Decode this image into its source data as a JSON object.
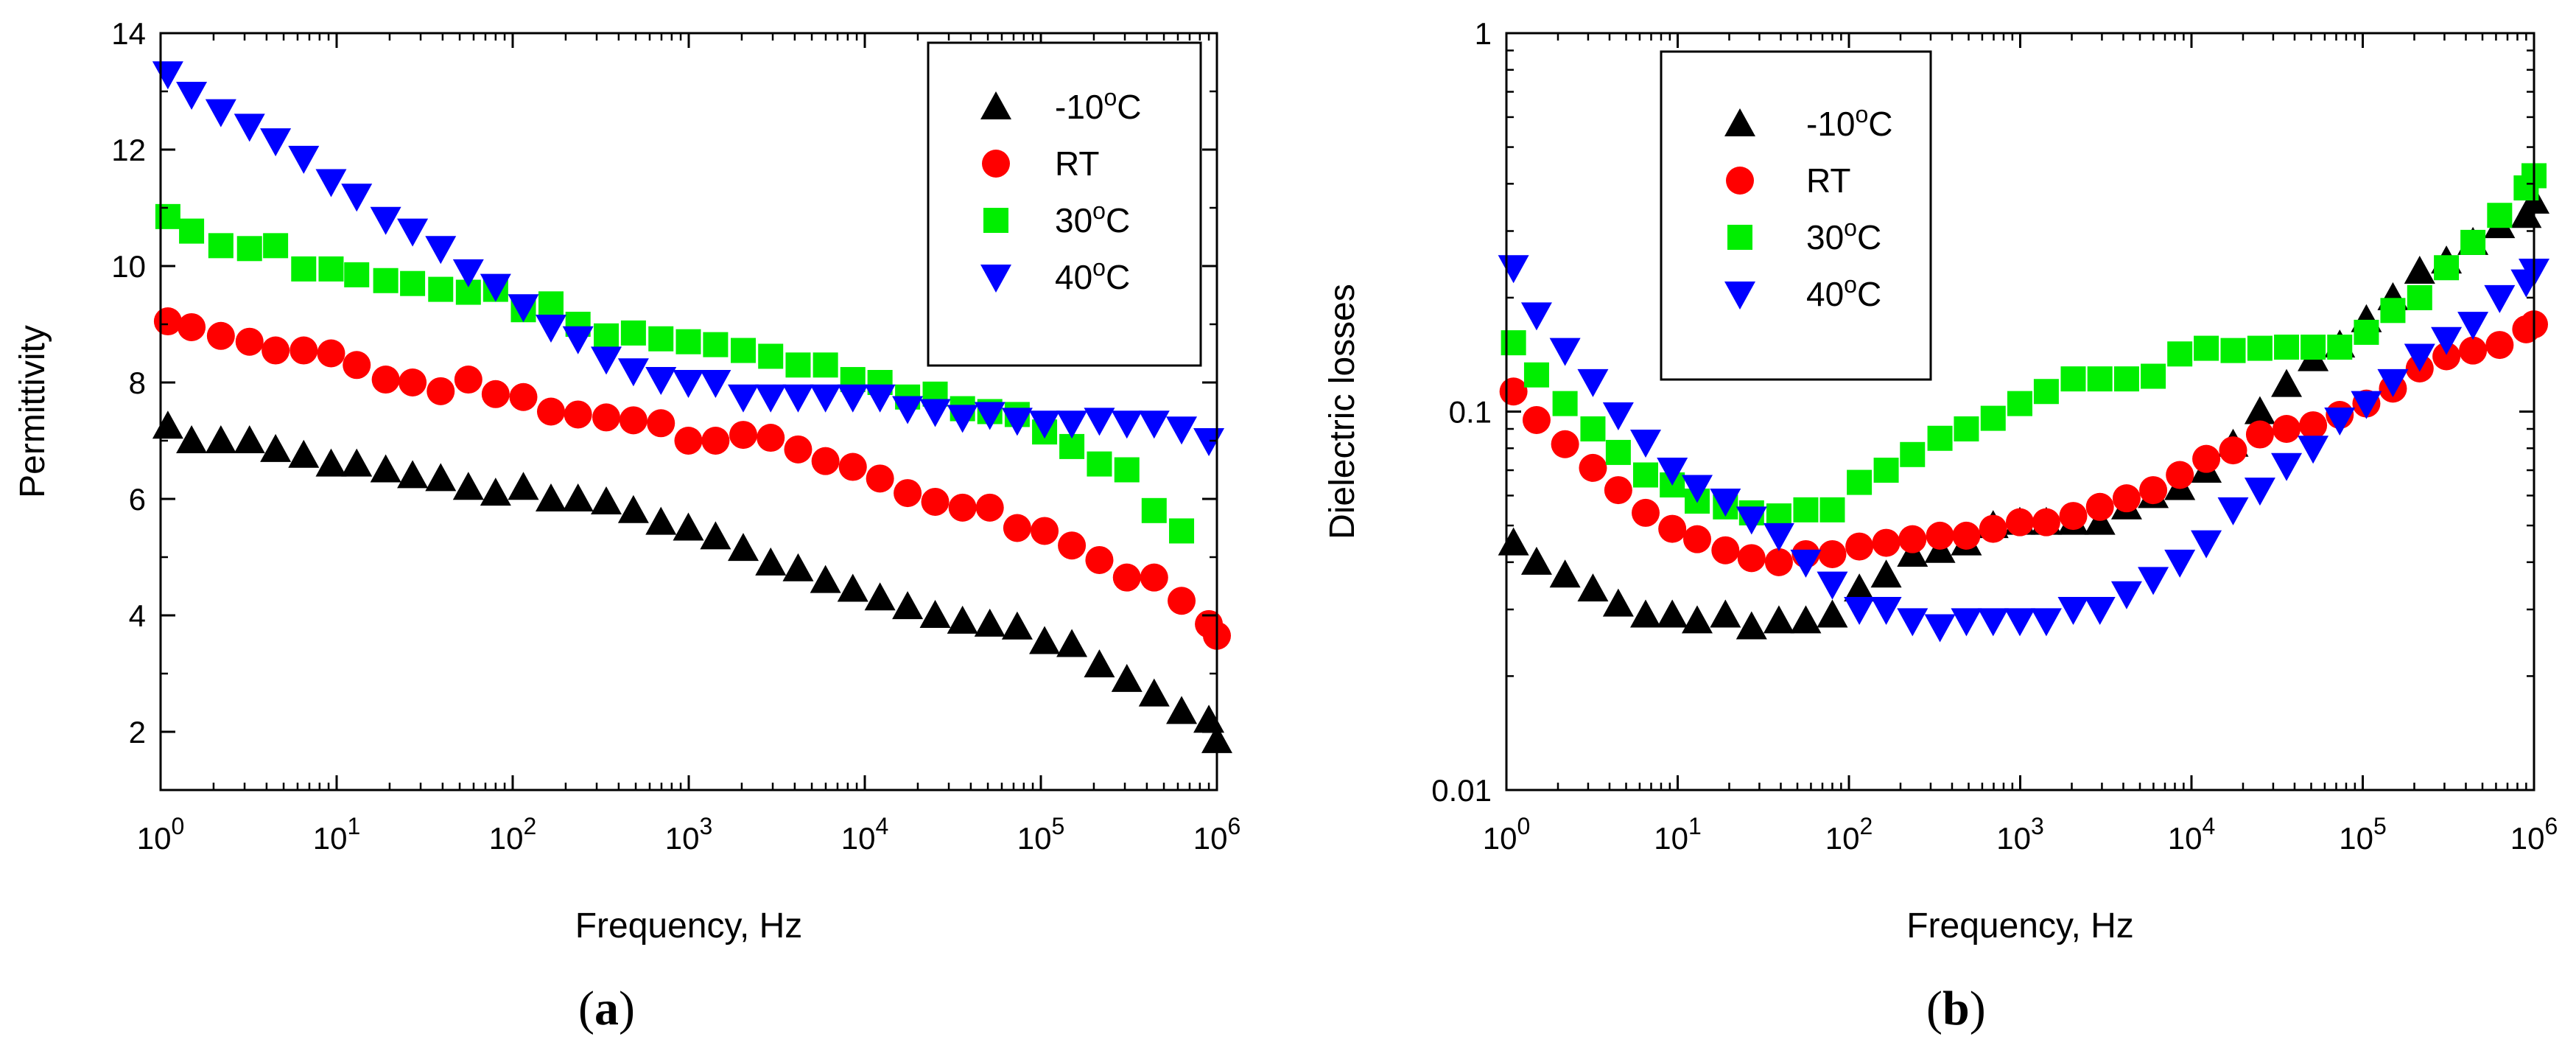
{
  "colors": {
    "-10C": "#000000",
    "RT": "#ff0000",
    "30C": "#00ee00",
    "40C": "#0000ff"
  },
  "chart_data": [
    {
      "id": "a",
      "type": "scatter",
      "panel_label": "a",
      "xlabel": "Frequency, Hz",
      "ylabel": "Permittivity",
      "xscale": "log",
      "yscale": "linear",
      "xlim": [
        1,
        1000000
      ],
      "ylim": [
        1,
        14
      ],
      "x_ticks": [
        {
          "value": 1,
          "base": "10",
          "exp": "0"
        },
        {
          "value": 10,
          "base": "10",
          "exp": "1"
        },
        {
          "value": 100,
          "base": "10",
          "exp": "2"
        },
        {
          "value": 1000,
          "base": "10",
          "exp": "3"
        },
        {
          "value": 10000,
          "base": "10",
          "exp": "4"
        },
        {
          "value": 100000,
          "base": "10",
          "exp": "5"
        },
        {
          "value": 1000000,
          "base": "10",
          "exp": "6"
        }
      ],
      "y_ticks": [
        {
          "value": 2,
          "label": "2"
        },
        {
          "value": 4,
          "label": "4"
        },
        {
          "value": 6,
          "label": "6"
        },
        {
          "value": 8,
          "label": "8"
        },
        {
          "value": 10,
          "label": "10"
        },
        {
          "value": 12,
          "label": "12"
        },
        {
          "value": 14,
          "label": "14"
        }
      ],
      "grid": false,
      "legend_position": "top-right",
      "series": [
        {
          "key": "-10C",
          "name_main": "-10",
          "name_sup": "o",
          "name_tail": "C",
          "marker": "triangle-up",
          "x": [
            1.1,
            1.5,
            2.2,
            3.2,
            4.5,
            6.5,
            9.3,
            13,
            19,
            27,
            39,
            56,
            80,
            115,
            165,
            235,
            340,
            485,
            695,
            995,
            1420,
            2040,
            2920,
            4180,
            5980,
            8550,
            12200,
            17500,
            25100,
            35900,
            51300,
            73400,
            105000,
            150000,
            215000,
            308000,
            440000,
            630000,
            900000,
            1000000
          ],
          "y": [
            7.25,
            7.0,
            7.0,
            7.0,
            6.85,
            6.75,
            6.6,
            6.6,
            6.5,
            6.4,
            6.35,
            6.2,
            6.1,
            6.2,
            6.0,
            6.0,
            5.95,
            5.8,
            5.6,
            5.5,
            5.35,
            5.15,
            4.9,
            4.8,
            4.6,
            4.45,
            4.3,
            4.15,
            4.0,
            3.9,
            3.85,
            3.8,
            3.55,
            3.5,
            3.15,
            2.9,
            2.65,
            2.35,
            2.2,
            1.85
          ]
        },
        {
          "key": "RT",
          "name_main": "RT",
          "name_sup": "",
          "name_tail": "",
          "marker": "circle",
          "x": [
            1.1,
            1.5,
            2.2,
            3.2,
            4.5,
            6.5,
            9.3,
            13,
            19,
            27,
            39,
            56,
            80,
            115,
            165,
            235,
            340,
            485,
            695,
            995,
            1420,
            2040,
            2920,
            4180,
            5980,
            8550,
            12200,
            17500,
            25100,
            35900,
            51300,
            73400,
            105000,
            150000,
            215000,
            308000,
            440000,
            630000,
            900000,
            1000000
          ],
          "y": [
            9.05,
            8.95,
            8.8,
            8.7,
            8.55,
            8.55,
            8.5,
            8.3,
            8.05,
            8.0,
            7.85,
            8.05,
            7.8,
            7.75,
            7.5,
            7.45,
            7.4,
            7.35,
            7.3,
            7.0,
            7.0,
            7.1,
            7.05,
            6.85,
            6.65,
            6.55,
            6.35,
            6.1,
            5.95,
            5.85,
            5.85,
            5.5,
            5.45,
            5.2,
            4.95,
            4.65,
            4.65,
            4.25,
            3.85,
            3.65
          ]
        },
        {
          "key": "30C",
          "name_main": "30",
          "name_sup": "o",
          "name_tail": "C",
          "marker": "square",
          "x": [
            1.1,
            1.5,
            2.2,
            3.2,
            4.5,
            6.5,
            9.3,
            13,
            19,
            27,
            39,
            56,
            80,
            115,
            165,
            235,
            340,
            485,
            695,
            995,
            1420,
            2040,
            2920,
            4180,
            5980,
            8550,
            12200,
            17500,
            25100,
            35900,
            51300,
            73400,
            105000,
            150000,
            215000,
            308000,
            440000,
            630000
          ],
          "y": [
            10.85,
            10.6,
            10.35,
            10.3,
            10.35,
            9.95,
            9.95,
            9.85,
            9.75,
            9.7,
            9.6,
            9.55,
            9.6,
            9.25,
            9.35,
            9.0,
            8.8,
            8.85,
            8.75,
            8.7,
            8.65,
            8.55,
            8.45,
            8.3,
            8.3,
            8.05,
            8.0,
            7.75,
            7.8,
            7.55,
            7.5,
            7.45,
            7.15,
            6.9,
            6.6,
            6.5,
            5.8,
            5.45
          ]
        },
        {
          "key": "40C",
          "name_main": "40",
          "name_sup": "o",
          "name_tail": "C",
          "marker": "triangle-down",
          "x": [
            1.1,
            1.5,
            2.2,
            3.2,
            4.5,
            6.5,
            9.3,
            13,
            19,
            27,
            39,
            56,
            80,
            115,
            165,
            235,
            340,
            485,
            695,
            995,
            1420,
            2040,
            2920,
            4180,
            5980,
            8550,
            12200,
            17500,
            25100,
            35900,
            51300,
            73400,
            105000,
            150000,
            215000,
            308000,
            440000,
            630000,
            900000
          ],
          "y": [
            13.3,
            12.95,
            12.65,
            12.4,
            12.15,
            11.85,
            11.45,
            11.2,
            10.8,
            10.6,
            10.3,
            9.9,
            9.65,
            9.3,
            8.95,
            8.75,
            8.4,
            8.2,
            8.05,
            8.0,
            8.0,
            7.75,
            7.75,
            7.75,
            7.75,
            7.75,
            7.75,
            7.55,
            7.5,
            7.4,
            7.45,
            7.35,
            7.3,
            7.3,
            7.35,
            7.3,
            7.3,
            7.2,
            7.0
          ]
        }
      ]
    },
    {
      "id": "b",
      "type": "scatter",
      "panel_label": "b",
      "xlabel": "Frequency, Hz",
      "ylabel": "Dielectric losses",
      "xscale": "log",
      "yscale": "log",
      "xlim": [
        1,
        1000000
      ],
      "ylim": [
        0.01,
        1
      ],
      "x_ticks": [
        {
          "value": 1,
          "base": "10",
          "exp": "0"
        },
        {
          "value": 10,
          "base": "10",
          "exp": "1"
        },
        {
          "value": 100,
          "base": "10",
          "exp": "2"
        },
        {
          "value": 1000,
          "base": "10",
          "exp": "3"
        },
        {
          "value": 10000,
          "base": "10",
          "exp": "4"
        },
        {
          "value": 100000,
          "base": "10",
          "exp": "5"
        },
        {
          "value": 1000000,
          "base": "10",
          "exp": "6"
        }
      ],
      "y_ticks": [
        {
          "value": 0.01,
          "label": "0.01"
        },
        {
          "value": 0.1,
          "label": "0.1"
        },
        {
          "value": 1,
          "label": "1"
        }
      ],
      "grid": false,
      "legend_position": "top-left",
      "series": [
        {
          "key": "-10C",
          "name_main": "-10",
          "name_sup": "o",
          "name_tail": "C",
          "marker": "triangle-up",
          "x": [
            1.1,
            1.5,
            2.2,
            3.2,
            4.5,
            6.5,
            9.3,
            13,
            19,
            27,
            39,
            56,
            80,
            115,
            165,
            235,
            340,
            485,
            695,
            995,
            1420,
            2040,
            2920,
            4180,
            5980,
            8550,
            12200,
            17500,
            25100,
            35900,
            51300,
            73400,
            105000,
            150000,
            215000,
            308000,
            440000,
            630000,
            900000,
            1000000
          ],
          "y": [
            0.045,
            0.04,
            0.037,
            0.034,
            0.031,
            0.029,
            0.029,
            0.028,
            0.029,
            0.027,
            0.028,
            0.028,
            0.029,
            0.034,
            0.037,
            0.042,
            0.043,
            0.045,
            0.05,
            0.051,
            0.051,
            0.051,
            0.051,
            0.056,
            0.06,
            0.063,
            0.07,
            0.082,
            0.1,
            0.118,
            0.138,
            0.15,
            0.175,
            0.2,
            0.235,
            0.25,
            0.28,
            0.31,
            0.33,
            0.36
          ]
        },
        {
          "key": "RT",
          "name_main": "RT",
          "name_sup": "",
          "name_tail": "",
          "marker": "circle",
          "x": [
            1.1,
            1.5,
            2.2,
            3.2,
            4.5,
            6.5,
            9.3,
            13,
            19,
            27,
            39,
            56,
            80,
            115,
            165,
            235,
            340,
            485,
            695,
            995,
            1420,
            2040,
            2920,
            4180,
            5980,
            8550,
            12200,
            17500,
            25100,
            35900,
            51300,
            73400,
            105000,
            150000,
            215000,
            308000,
            440000,
            630000,
            900000,
            1000000
          ],
          "y": [
            0.113,
            0.095,
            0.082,
            0.071,
            0.062,
            0.054,
            0.049,
            0.046,
            0.043,
            0.041,
            0.04,
            0.042,
            0.042,
            0.044,
            0.045,
            0.046,
            0.047,
            0.047,
            0.049,
            0.051,
            0.051,
            0.053,
            0.056,
            0.059,
            0.062,
            0.068,
            0.075,
            0.079,
            0.087,
            0.09,
            0.092,
            0.098,
            0.105,
            0.115,
            0.13,
            0.14,
            0.145,
            0.15,
            0.165,
            0.17
          ]
        },
        {
          "key": "30C",
          "name_main": "30",
          "name_sup": "o",
          "name_tail": "C",
          "marker": "square",
          "x": [
            1.1,
            1.5,
            2.2,
            3.2,
            4.5,
            6.5,
            9.3,
            13,
            19,
            27,
            39,
            56,
            80,
            115,
            165,
            235,
            340,
            485,
            695,
            995,
            1420,
            2040,
            2920,
            4180,
            5980,
            8550,
            12200,
            17500,
            25100,
            35900,
            51300,
            73400,
            105000,
            150000,
            215000,
            308000,
            440000,
            630000,
            900000,
            1000000
          ],
          "y": [
            0.152,
            0.125,
            0.105,
            0.09,
            0.078,
            0.068,
            0.064,
            0.058,
            0.056,
            0.054,
            0.053,
            0.055,
            0.055,
            0.065,
            0.07,
            0.077,
            0.085,
            0.09,
            0.096,
            0.105,
            0.113,
            0.122,
            0.122,
            0.122,
            0.124,
            0.142,
            0.147,
            0.145,
            0.147,
            0.148,
            0.148,
            0.148,
            0.162,
            0.185,
            0.2,
            0.24,
            0.28,
            0.33,
            0.39,
            0.42
          ]
        },
        {
          "key": "40C",
          "name_main": "40",
          "name_sup": "o",
          "name_tail": "C",
          "marker": "triangle-down",
          "x": [
            1.1,
            1.5,
            2.2,
            3.2,
            4.5,
            6.5,
            9.3,
            13,
            19,
            27,
            39,
            56,
            80,
            115,
            165,
            235,
            340,
            485,
            695,
            995,
            1420,
            2040,
            2920,
            4180,
            5980,
            8550,
            12200,
            17500,
            25100,
            35900,
            51300,
            73400,
            105000,
            150000,
            215000,
            308000,
            440000,
            630000,
            900000,
            1000000
          ],
          "y": [
            0.24,
            0.18,
            0.145,
            0.12,
            0.098,
            0.083,
            0.07,
            0.063,
            0.058,
            0.052,
            0.047,
            0.04,
            0.035,
            0.03,
            0.03,
            0.028,
            0.027,
            0.028,
            0.028,
            0.028,
            0.028,
            0.03,
            0.03,
            0.033,
            0.036,
            0.04,
            0.045,
            0.055,
            0.062,
            0.072,
            0.08,
            0.095,
            0.105,
            0.12,
            0.14,
            0.155,
            0.17,
            0.2,
            0.22,
            0.235
          ]
        }
      ]
    }
  ]
}
